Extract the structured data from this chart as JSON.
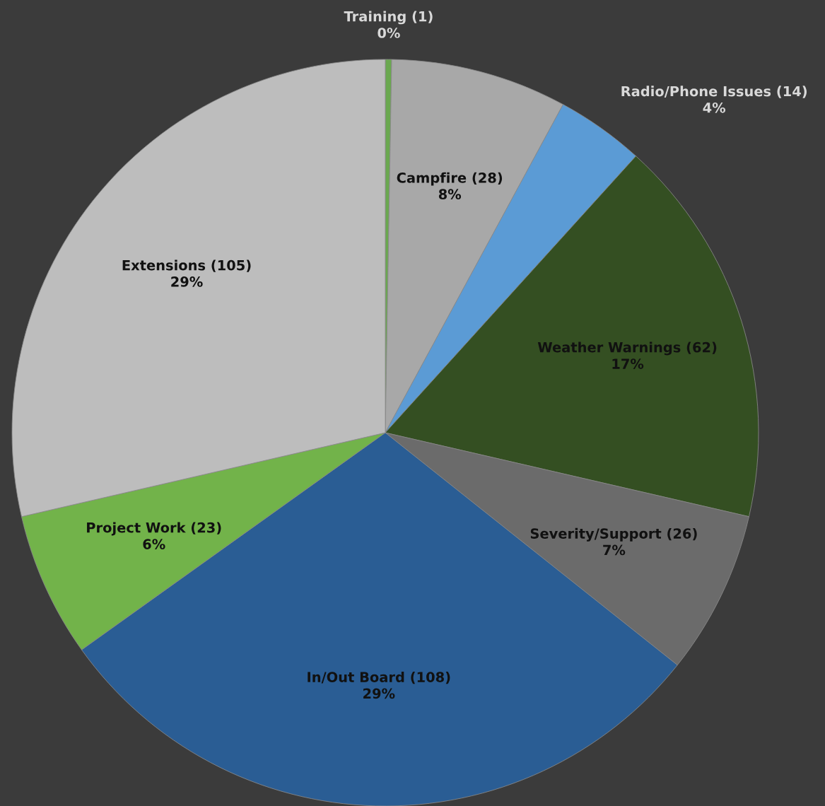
{
  "chart_data": {
    "type": "pie",
    "categories": [
      "Training",
      "Campfire",
      "Radio/Phone Issues",
      "Weather Warnings",
      "Severity/Support",
      "In/Out Board",
      "Project Work",
      "Extensions"
    ],
    "values": [
      1,
      28,
      14,
      62,
      26,
      108,
      23,
      105
    ],
    "value_labels": [
      "(1)\n0%",
      "(28)\n8%",
      "(14)\n4%",
      "(62)\n17%",
      "(26)\n7%",
      "(108)\n29%",
      "(23)\n6%",
      "(105)\n29%"
    ],
    "colors": [
      "#6aa84f",
      "#a8a8a8",
      "#5b9bd5",
      "#344f22",
      "#6b6b6b",
      "#2a5d94",
      "#72b34a",
      "#bdbdbd"
    ]
  }
}
